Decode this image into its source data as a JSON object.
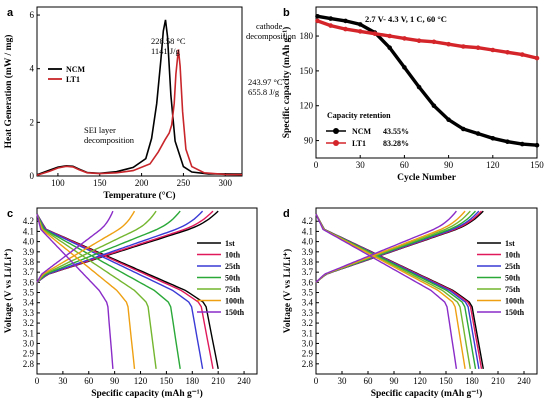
{
  "chart_data": [
    {
      "panel": "a",
      "type": "line",
      "xlabel": "Temperature (°C)",
      "ylabel": "Heat Generation (mW / mg)",
      "xlim": [
        75,
        320
      ],
      "ylim": [
        0,
        6.3
      ],
      "xticks": [
        "100",
        "150",
        "200",
        "250",
        "300"
      ],
      "yticks": [
        "0",
        "2",
        "4",
        "6"
      ],
      "legend": {
        "position": "middle-left",
        "entries": [
          "NCM",
          "LT1"
        ]
      },
      "series": [
        {
          "name": "NCM",
          "color": "#000000",
          "x": [
            75,
            90,
            100,
            110,
            118,
            125,
            135,
            150,
            170,
            190,
            205,
            212,
            218,
            223,
            226,
            228.58,
            231,
            235,
            240,
            250,
            260,
            280,
            300,
            320
          ],
          "y": [
            0.05,
            0.22,
            0.33,
            0.38,
            0.36,
            0.26,
            0.13,
            0.1,
            0.16,
            0.32,
            0.65,
            1.4,
            2.7,
            4.3,
            5.4,
            5.82,
            5.2,
            3.0,
            1.3,
            0.35,
            0.15,
            0.08,
            0.08,
            0.07
          ]
        },
        {
          "name": "LT1",
          "color": "#c8262b",
          "x": [
            75,
            90,
            100,
            110,
            118,
            125,
            135,
            150,
            170,
            190,
            210,
            220,
            228,
            233,
            236,
            239,
            241,
            243.97,
            246,
            249,
            253,
            260,
            275,
            300,
            320
          ],
          "y": [
            0.03,
            0.18,
            0.3,
            0.36,
            0.34,
            0.24,
            0.12,
            0.09,
            0.12,
            0.2,
            0.45,
            0.9,
            1.35,
            1.6,
            1.9,
            2.7,
            3.8,
            4.72,
            4.1,
            2.4,
            1.0,
            0.35,
            0.12,
            0.06,
            0.05
          ]
        }
      ],
      "annotations": [
        {
          "id": "ncm-peak",
          "lines": [
            "228.58 °C",
            "1141 J/g"
          ]
        },
        {
          "id": "lt1-peak",
          "lines": [
            "243.97 °C",
            "655.8 J/g"
          ]
        },
        {
          "id": "cathode",
          "lines": [
            "cathode",
            "decomposition"
          ]
        },
        {
          "id": "sei",
          "lines": [
            "SEI layer",
            "decomposition"
          ]
        }
      ]
    },
    {
      "panel": "b",
      "type": "scatter",
      "title": "2.7 V- 4.3 V, 1 C, 60 °C",
      "xlabel": "Cycle Number",
      "ylabel": "Specific capacity (mAh g⁻¹)",
      "xlim": [
        0,
        150
      ],
      "ylim": [
        75,
        205
      ],
      "xticks": [
        "0",
        "30",
        "60",
        "90",
        "120",
        "150"
      ],
      "yticks": [
        "90",
        "120",
        "150",
        "180"
      ],
      "legend": {
        "position": "bottom-left",
        "title": "Capacity retention",
        "entries": [
          {
            "name": "NCM",
            "value": "43.55%"
          },
          {
            "name": "LT1",
            "value": "83.28%"
          }
        ]
      },
      "series": [
        {
          "name": "NCM",
          "color": "#000000",
          "x": [
            1,
            10,
            20,
            30,
            40,
            50,
            60,
            70,
            80,
            90,
            100,
            110,
            120,
            130,
            140,
            150
          ],
          "y": [
            197,
            195,
            193,
            190,
            183,
            170,
            153,
            136,
            120,
            108,
            100,
            96,
            92,
            89,
            87,
            86
          ]
        },
        {
          "name": "LT1",
          "color": "#d4252a",
          "x": [
            1,
            10,
            20,
            30,
            40,
            50,
            60,
            70,
            80,
            90,
            100,
            110,
            120,
            130,
            140,
            150
          ],
          "y": [
            193,
            189,
            186,
            184,
            182,
            180,
            178,
            176,
            175,
            173,
            171,
            170,
            168,
            166,
            164,
            161
          ]
        }
      ]
    },
    {
      "panel": "c",
      "type": "line",
      "xlabel": "Specific capacity (mAh g⁻¹)",
      "ylabel": "Voltage (V vs Li/Li⁺)",
      "xlim": [
        0,
        255
      ],
      "ylim": [
        2.7,
        4.33
      ],
      "xticks": [
        "0",
        "30",
        "60",
        "90",
        "120",
        "150",
        "180",
        "210",
        "240"
      ],
      "yticks": [
        "2.8",
        "2.9",
        "3.0",
        "3.1",
        "3.2",
        "3.3",
        "3.4",
        "3.5",
        "3.6",
        "3.7",
        "3.8",
        "3.9",
        "4.0",
        "4.1",
        "4.2"
      ],
      "legend": {
        "position": "right",
        "entries": [
          "1st",
          "10th",
          "25th",
          "50th",
          "75th",
          "100th",
          "150th"
        ]
      },
      "series": [
        {
          "name": "1st",
          "color": "#000000",
          "capacity": 210
        },
        {
          "name": "10th",
          "color": "#e0195a",
          "capacity": 204
        },
        {
          "name": "25th",
          "color": "#3a3ad6",
          "capacity": 192
        },
        {
          "name": "50th",
          "color": "#2aa838",
          "capacity": 166
        },
        {
          "name": "75th",
          "color": "#74b62f",
          "capacity": 138
        },
        {
          "name": "100th",
          "color": "#eea012",
          "capacity": 113
        },
        {
          "name": "150th",
          "color": "#8a2cc8",
          "capacity": 88
        }
      ]
    },
    {
      "panel": "d",
      "type": "line",
      "xlabel": "Specific capacity (mAh g⁻¹)",
      "ylabel": "Voltage (V vs Li/Li⁺)",
      "xlim": [
        0,
        255
      ],
      "ylim": [
        2.7,
        4.33
      ],
      "xticks": [
        "0",
        "30",
        "60",
        "90",
        "120",
        "150",
        "180",
        "210",
        "240"
      ],
      "yticks": [
        "2.8",
        "2.9",
        "3.0",
        "3.1",
        "3.2",
        "3.3",
        "3.4",
        "3.5",
        "3.6",
        "3.7",
        "3.8",
        "3.9",
        "4.0",
        "4.1",
        "4.2"
      ],
      "legend": {
        "position": "right",
        "entries": [
          "1st",
          "10th",
          "25th",
          "50th",
          "75th",
          "100th",
          "150th"
        ]
      },
      "series": [
        {
          "name": "1st",
          "color": "#000000",
          "capacity": 193
        },
        {
          "name": "10th",
          "color": "#e0195a",
          "capacity": 191
        },
        {
          "name": "25th",
          "color": "#3a3ad6",
          "capacity": 188
        },
        {
          "name": "50th",
          "color": "#2aa838",
          "capacity": 184
        },
        {
          "name": "75th",
          "color": "#74b62f",
          "capacity": 178
        },
        {
          "name": "100th",
          "color": "#eea012",
          "capacity": 172
        },
        {
          "name": "150th",
          "color": "#8a2cc8",
          "capacity": 162
        }
      ]
    }
  ]
}
